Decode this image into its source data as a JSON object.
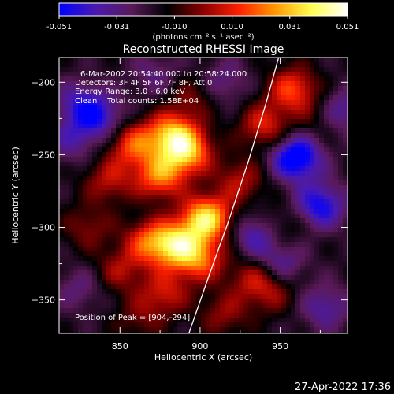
{
  "chart_data": {
    "type": "heatmap",
    "title": "Reconstructed RHESSI Image",
    "xlabel": "Heliocentric X (arcsec)",
    "ylabel": "Heliocentric Y (arcsec)",
    "xlim": [
      812,
      992
    ],
    "ylim": [
      -373,
      -183
    ],
    "xticks": [
      850,
      900,
      950
    ],
    "yticks": [
      -200,
      -250,
      -300,
      -350
    ],
    "colorbar": {
      "min": -0.051,
      "max": 0.051,
      "ticks": [
        "-0.051",
        "-0.031",
        "-0.010",
        "0.010",
        "0.031",
        "0.051"
      ],
      "unit_label": "(photons cm⁻² s⁻¹ asec⁻²)",
      "colors": [
        "#0000ff",
        "#4a1ab0",
        "#5a1a5a",
        "#000000",
        "#8a0000",
        "#ff2000",
        "#ff9a00",
        "#ffff50",
        "#ffffff"
      ]
    },
    "annotations": {
      "line1": "6-Mar-2002 20:54:40.000 to 20:58:24.000",
      "line2": "Detectors: 3F 4F 5F 6F 7F 8F, Att 0",
      "line3": "Energy Range: 3.0 - 6.0 keV",
      "line4": "Clean    Total counts: 1.58E+04",
      "peak_label": "Position of Peak = [904,-294]"
    },
    "peak": {
      "x": 904,
      "y": -294
    },
    "limb_curve": [
      {
        "x": 893,
        "y": -373
      },
      {
        "x": 905,
        "y": -335
      },
      {
        "x": 918,
        "y": -295
      },
      {
        "x": 930,
        "y": -255
      },
      {
        "x": 941,
        "y": -215
      },
      {
        "x": 949,
        "y": -183
      }
    ],
    "bright_blobs": [
      {
        "x": 858,
        "y": -243,
        "v": 0.03
      },
      {
        "x": 882,
        "y": -236,
        "v": 0.038
      },
      {
        "x": 892,
        "y": -248,
        "v": 0.04
      },
      {
        "x": 875,
        "y": -265,
        "v": 0.035
      },
      {
        "x": 904,
        "y": -294,
        "v": 0.051
      },
      {
        "x": 885,
        "y": -312,
        "v": 0.042
      },
      {
        "x": 868,
        "y": -310,
        "v": 0.028
      },
      {
        "x": 900,
        "y": -322,
        "v": 0.03
      },
      {
        "x": 850,
        "y": -330,
        "v": 0.018
      },
      {
        "x": 843,
        "y": -268,
        "v": 0.02
      },
      {
        "x": 878,
        "y": -345,
        "v": 0.022
      },
      {
        "x": 925,
        "y": -268,
        "v": 0.02
      },
      {
        "x": 895,
        "y": -210,
        "v": 0.014
      },
      {
        "x": 933,
        "y": -335,
        "v": 0.018
      },
      {
        "x": 945,
        "y": -345,
        "v": 0.015
      },
      {
        "x": 950,
        "y": -300,
        "v": 0.012
      },
      {
        "x": 958,
        "y": -205,
        "v": 0.03
      },
      {
        "x": 940,
        "y": -230,
        "v": 0.025
      },
      {
        "x": 975,
        "y": -225,
        "v": 0.01
      },
      {
        "x": 830,
        "y": -300,
        "v": 0.015
      },
      {
        "x": 862,
        "y": -363,
        "v": 0.012
      },
      {
        "x": 915,
        "y": -360,
        "v": 0.016
      }
    ],
    "dark_blobs": [
      {
        "x": 960,
        "y": -252,
        "v": -0.04
      },
      {
        "x": 975,
        "y": -285,
        "v": -0.03
      },
      {
        "x": 935,
        "y": -305,
        "v": -0.022
      },
      {
        "x": 950,
        "y": -325,
        "v": -0.018
      },
      {
        "x": 978,
        "y": -355,
        "v": -0.018
      },
      {
        "x": 825,
        "y": -215,
        "v": -0.02
      },
      {
        "x": 838,
        "y": -225,
        "v": -0.022
      },
      {
        "x": 820,
        "y": -240,
        "v": -0.015
      },
      {
        "x": 915,
        "y": -200,
        "v": -0.014
      },
      {
        "x": 872,
        "y": -195,
        "v": -0.012
      },
      {
        "x": 825,
        "y": -342,
        "v": -0.012
      },
      {
        "x": 988,
        "y": -220,
        "v": -0.02
      }
    ]
  },
  "footer": {
    "timestamp": "27-Apr-2022 17:36"
  }
}
